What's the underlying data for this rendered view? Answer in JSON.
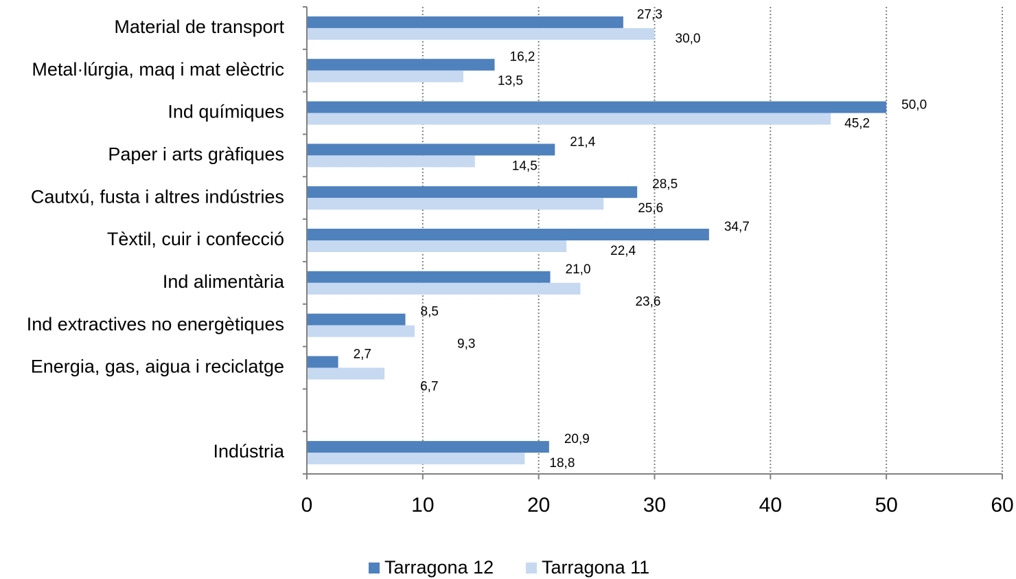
{
  "chart_data": {
    "type": "bar",
    "orientation": "horizontal",
    "categories": [
      "Material de transport",
      "Metal·lúrgia, maq i mat elèctric",
      "Ind químiques",
      "Paper i arts gràfiques",
      "Cautxú, fusta i altres indústries",
      "Tèxtil, cuir i confecció",
      "Ind alimentària",
      "Ind extractives no energètiques",
      "Energia, gas, aigua i reciclatge",
      "",
      "Indústria"
    ],
    "series": [
      {
        "name": "Tarragona 12",
        "color": "#4f81bd",
        "values": [
          27.3,
          16.2,
          50.0,
          21.4,
          28.5,
          34.7,
          21.0,
          8.5,
          2.7,
          null,
          20.9
        ],
        "labels": [
          "27,3",
          "16,2",
          "50,0",
          "21,4",
          "28,5",
          "34,7",
          "21,0",
          "8,5",
          "2,7",
          "",
          "20,9"
        ]
      },
      {
        "name": "Tarragona 11",
        "color": "#c6d9f1",
        "values": [
          30.0,
          13.5,
          45.2,
          14.5,
          25.6,
          22.4,
          23.6,
          9.3,
          6.7,
          null,
          18.8
        ],
        "labels": [
          "30,0",
          "13,5",
          "45,2",
          "14,5",
          "25,6",
          "22,4",
          "23,6",
          "9,3",
          "6,7",
          "",
          "18,8"
        ]
      }
    ],
    "xlim": [
      0,
      60
    ],
    "xticks": [
      0,
      10,
      20,
      30,
      40,
      50,
      60
    ],
    "xtick_labels": [
      "0",
      "10",
      "20",
      "30",
      "40",
      "50",
      "60"
    ],
    "grid": "vertical-dotted",
    "legend_position": "bottom-center"
  }
}
